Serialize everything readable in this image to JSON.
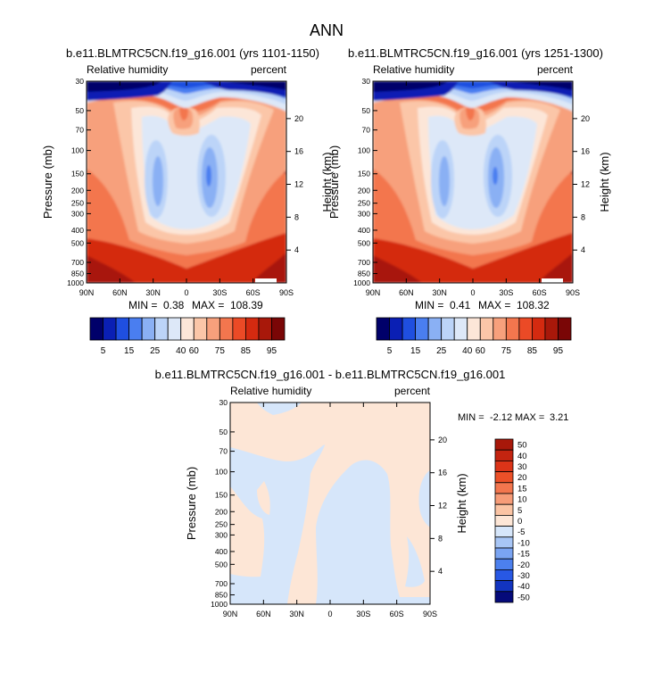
{
  "page_title": "ANN",
  "chart_data": [
    {
      "type": "heatmap",
      "title": "b.e11.BLMTRC5CN.f19_g16.001 (yrs 1101-1150)",
      "left_label": "Relative humidity",
      "right_label": "percent",
      "xlabel": "",
      "ylabel": "Pressure (mb)",
      "y2label": "Height (km)",
      "x_ticks": [
        "90N",
        "60N",
        "30N",
        "0",
        "30S",
        "60S",
        "90S"
      ],
      "y_ticks": [
        30,
        50,
        70,
        100,
        150,
        200,
        250,
        300,
        400,
        500,
        700,
        850,
        1000
      ],
      "y2_ticks": [
        20,
        16,
        12,
        8,
        4
      ],
      "ylim": [
        1000,
        30
      ],
      "min_label": "MIN =",
      "min": "0.38",
      "max_label": "MAX =",
      "max": "108.39",
      "colorbar_labels": [
        "5",
        "15",
        "25",
        "40",
        "60",
        "75",
        "85",
        "95"
      ],
      "colorbar_colors": [
        "#00006a",
        "#0a1fb4",
        "#1f4fe0",
        "#4a7ef0",
        "#8ab0f4",
        "#bcd4f8",
        "#dde8f8",
        "#fce6d8",
        "#fbc6a8",
        "#f7a07c",
        "#f3764e",
        "#eb4a26",
        "#d42a10",
        "#a8180a",
        "#7a0606"
      ]
    },
    {
      "type": "heatmap",
      "title": "b.e11.BLMTRC5CN.f19_g16.001 (yrs 1251-1300)",
      "left_label": "Relative humidity",
      "right_label": "percent",
      "xlabel": "",
      "ylabel": "Pressure (mb)",
      "y2label": "Height (km)",
      "x_ticks": [
        "90N",
        "60N",
        "30N",
        "0",
        "30S",
        "60S",
        "90S"
      ],
      "y_ticks": [
        30,
        50,
        70,
        100,
        150,
        200,
        250,
        300,
        400,
        500,
        700,
        850,
        1000
      ],
      "y2_ticks": [
        20,
        16,
        12,
        8,
        4
      ],
      "ylim": [
        1000,
        30
      ],
      "min_label": "MIN =",
      "min": "0.41",
      "max_label": "MAX =",
      "max": "108.32",
      "colorbar_labels": [
        "5",
        "15",
        "25",
        "40",
        "60",
        "75",
        "85",
        "95"
      ],
      "colorbar_colors": [
        "#00006a",
        "#0a1fb4",
        "#1f4fe0",
        "#4a7ef0",
        "#8ab0f4",
        "#bcd4f8",
        "#dde8f8",
        "#fce6d8",
        "#fbc6a8",
        "#f7a07c",
        "#f3764e",
        "#eb4a26",
        "#d42a10",
        "#a8180a",
        "#7a0606"
      ]
    },
    {
      "type": "heatmap",
      "title": "b.e11.BLMTRC5CN.f19_g16.001 - b.e11.BLMTRC5CN.f19_g16.001",
      "left_label": "Relative humidity",
      "right_label": "percent",
      "xlabel": "",
      "ylabel": "Pressure (mb)",
      "y2label": "Height (km)",
      "x_ticks": [
        "90N",
        "60N",
        "30N",
        "0",
        "30S",
        "60S",
        "90S"
      ],
      "y_ticks": [
        30,
        50,
        70,
        100,
        150,
        200,
        250,
        300,
        400,
        500,
        700,
        850,
        1000
      ],
      "y2_ticks": [
        20,
        16,
        12,
        8,
        4
      ],
      "ylim": [
        1000,
        30
      ],
      "min_label": "MIN =",
      "min": "-2.12",
      "max_label": "MAX =",
      "max": "3.21",
      "colorbar_labels": [
        "50",
        "40",
        "30",
        "20",
        "15",
        "10",
        "5",
        "0",
        "-5",
        "-10",
        "-15",
        "-20",
        "-30",
        "-40",
        "-50"
      ],
      "colorbar_colors": [
        "#a8180a",
        "#c42410",
        "#dc3418",
        "#ec5028",
        "#f3764e",
        "#f79c78",
        "#fbc4a4",
        "#fde6d6",
        "#d6e6fa",
        "#a8c6f6",
        "#7aa4f2",
        "#4c80ee",
        "#2858e4",
        "#1234c0",
        "#050a7a"
      ]
    }
  ]
}
